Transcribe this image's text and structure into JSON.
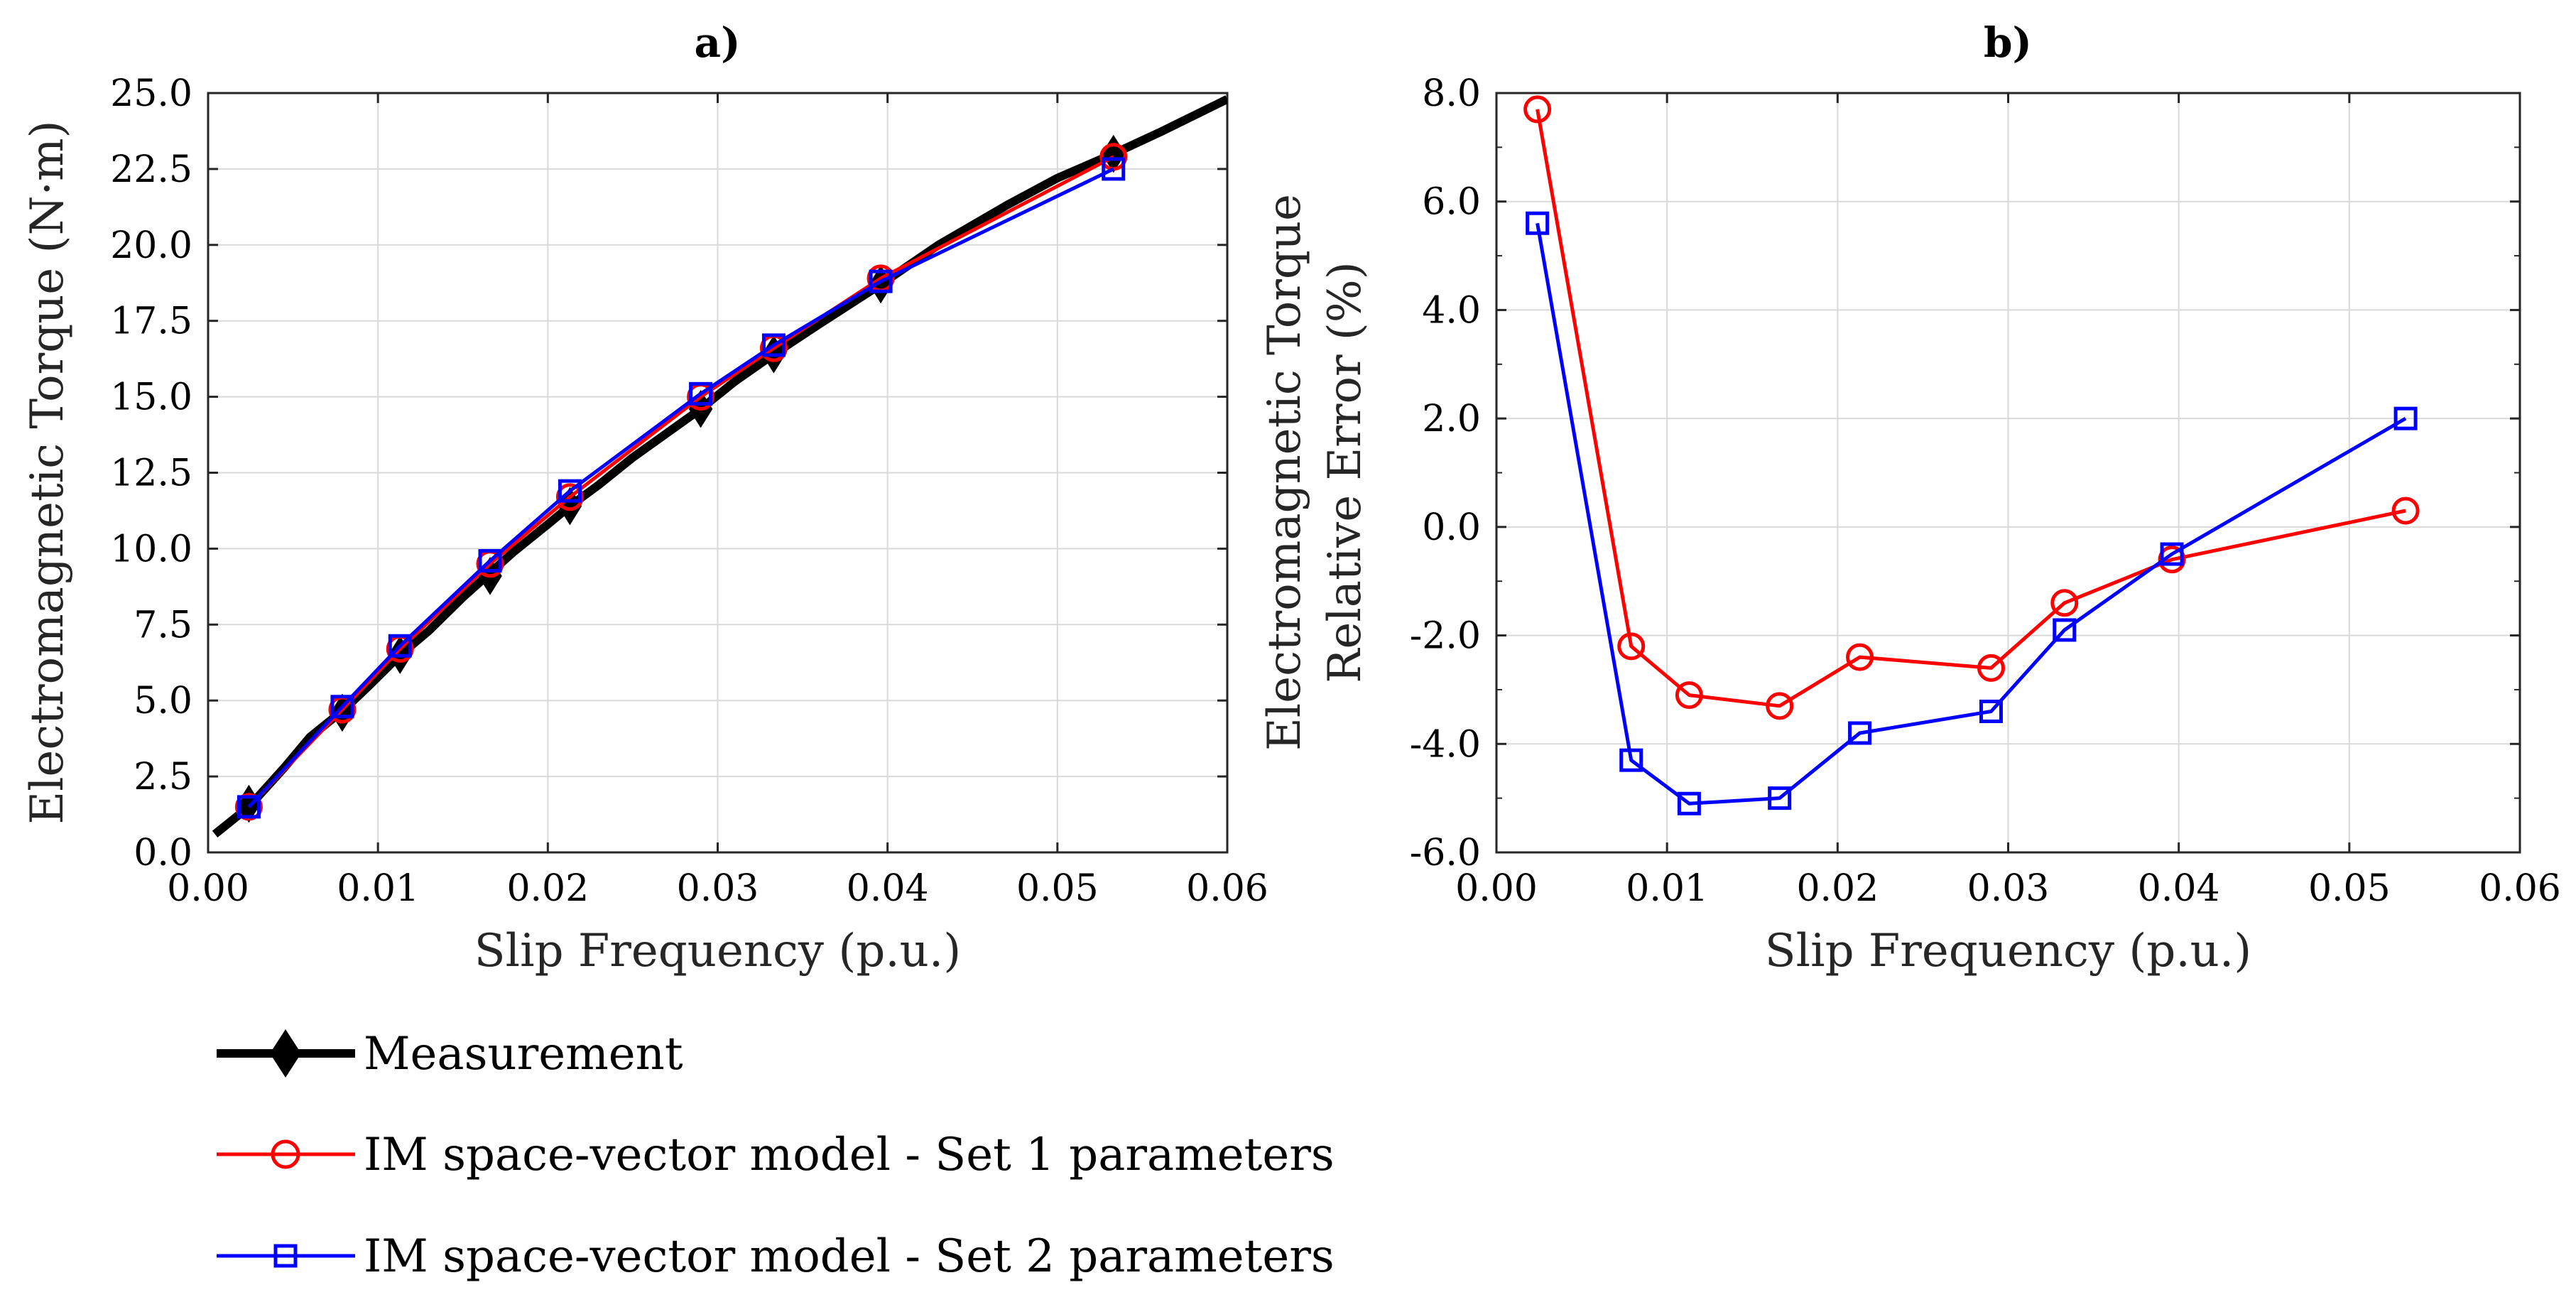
{
  "colors": {
    "measurement": "#000000",
    "set1": "#ff0000",
    "set2": "#0000ff",
    "grid": "#d9d9d9",
    "axis": "#262626"
  },
  "legend": {
    "items": [
      {
        "key": "measurement",
        "label": "Measurement",
        "marker": "diamond"
      },
      {
        "key": "set1",
        "label": "IM space-vector model - Set 1 parameters",
        "marker": "circle"
      },
      {
        "key": "set2",
        "label": "IM space-vector model - Set 2 parameters",
        "marker": "square"
      }
    ]
  },
  "chart_data": [
    {
      "id": "a",
      "type": "line",
      "title": "a)",
      "xlabel": "Slip Frequency (p.u.)",
      "ylabel": "Electromagnetic Torque (N·m)",
      "xlim": [
        0,
        0.06
      ],
      "ylim": [
        0,
        25
      ],
      "xticks": [
        0,
        0.01,
        0.02,
        0.03,
        0.04,
        0.05,
        0.06
      ],
      "xtick_labels": [
        "0.00",
        "0.01",
        "0.02",
        "0.03",
        "0.04",
        "0.05",
        "0.06"
      ],
      "yticks": [
        0,
        2.5,
        5,
        7.5,
        10,
        12.5,
        15,
        17.5,
        20,
        22.5,
        25
      ],
      "ytick_labels": [
        "0.0",
        "2.5",
        "5.0",
        "7.5",
        "10.0",
        "12.5",
        "15.0",
        "17.5",
        "20.0",
        "22.5",
        "25.0"
      ],
      "grid": true,
      "series": [
        {
          "key": "measurement",
          "name": "Measurement",
          "line_x": [
            0.0004,
            0.0024,
            0.0045,
            0.006,
            0.008,
            0.0095,
            0.0113,
            0.013,
            0.015,
            0.0166,
            0.018,
            0.02,
            0.0213,
            0.023,
            0.025,
            0.027,
            0.029,
            0.031,
            0.0333,
            0.036,
            0.0396,
            0.043,
            0.047,
            0.05,
            0.0533,
            0.056,
            0.06
          ],
          "line_y": [
            0.6,
            1.5,
            2.8,
            3.8,
            4.7,
            5.5,
            6.5,
            7.3,
            8.4,
            9.2,
            9.9,
            10.8,
            11.4,
            12.1,
            13.0,
            13.8,
            14.6,
            15.5,
            16.4,
            17.4,
            18.7,
            20.0,
            21.3,
            22.2,
            23.0,
            23.7,
            24.8
          ],
          "marker_x": [
            0.0024,
            0.0079,
            0.0113,
            0.0166,
            0.0213,
            0.029,
            0.0333,
            0.0396,
            0.0533
          ],
          "marker_y": [
            1.6,
            4.6,
            6.5,
            9.1,
            11.4,
            14.6,
            16.4,
            18.7,
            23.0
          ]
        },
        {
          "key": "set1",
          "name": "IM space-vector model - Set 1 parameters",
          "marker_x": [
            0.0024,
            0.0079,
            0.0113,
            0.0166,
            0.0213,
            0.029,
            0.0333,
            0.0396,
            0.0533
          ],
          "marker_y": [
            1.5,
            4.7,
            6.7,
            9.5,
            11.7,
            15.0,
            16.6,
            18.9,
            22.9
          ]
        },
        {
          "key": "set2",
          "name": "IM space-vector model - Set 2 parameters",
          "marker_x": [
            0.0024,
            0.0079,
            0.0113,
            0.0166,
            0.0213,
            0.029,
            0.0333,
            0.0396,
            0.0533
          ],
          "marker_y": [
            1.5,
            4.8,
            6.8,
            9.6,
            11.9,
            15.1,
            16.7,
            18.8,
            22.5
          ]
        }
      ]
    },
    {
      "id": "b",
      "type": "line",
      "title": "b)",
      "xlabel": "Slip Frequency (p.u.)",
      "ylabel_lines": [
        "Electromagnetic Torque",
        "Relative Error (%)"
      ],
      "xlim": [
        0,
        0.06
      ],
      "ylim": [
        -6,
        8
      ],
      "xticks": [
        0,
        0.01,
        0.02,
        0.03,
        0.04,
        0.05,
        0.06
      ],
      "xtick_labels": [
        "0.00",
        "0.01",
        "0.02",
        "0.03",
        "0.04",
        "0.05",
        "0.06"
      ],
      "yticks": [
        -6,
        -4,
        -2,
        0,
        2,
        4,
        6,
        8
      ],
      "ytick_labels": [
        "-6.0",
        "-4.0",
        "-2.0",
        "0.0",
        "2.0",
        "4.0",
        "6.0",
        "8.0"
      ],
      "yminor": [
        -5,
        -3,
        -1,
        1,
        3,
        5,
        7
      ],
      "grid": true,
      "series": [
        {
          "key": "set1",
          "name": "IM space-vector model - Set 1 parameters",
          "marker_x": [
            0.0024,
            0.0079,
            0.0113,
            0.0166,
            0.0213,
            0.029,
            0.0333,
            0.0396,
            0.0533
          ],
          "marker_y": [
            7.7,
            -2.2,
            -3.1,
            -3.3,
            -2.4,
            -2.6,
            -1.4,
            -0.6,
            0.3
          ]
        },
        {
          "key": "set2",
          "name": "IM space-vector model - Set 2 parameters",
          "marker_x": [
            0.0024,
            0.0079,
            0.0113,
            0.0166,
            0.0213,
            0.029,
            0.0333,
            0.0396,
            0.0533
          ],
          "marker_y": [
            5.6,
            -4.3,
            -5.1,
            -5.0,
            -3.8,
            -3.4,
            -1.9,
            -0.5,
            2.0
          ]
        }
      ]
    }
  ]
}
